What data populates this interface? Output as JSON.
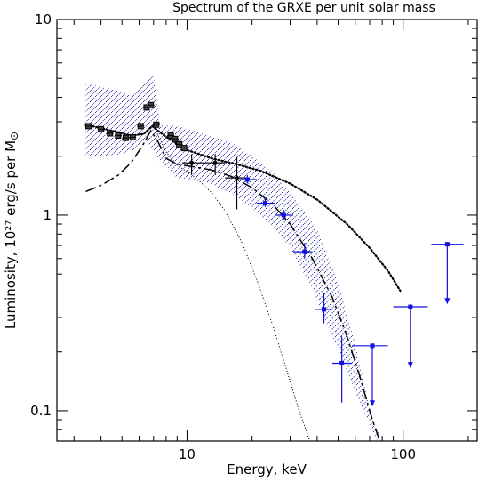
{
  "chart_data": {
    "type": "scatter",
    "title": "Spectrum of the GRXE per unit solar mass",
    "xlabel": "Energy, keV",
    "ylabel": "Luminosity, 10²⁷ erg/s per M",
    "ylabel_symbol": "⊙",
    "xscale": "log",
    "yscale": "log",
    "xlim": [
      2.5,
      220
    ],
    "ylim": [
      0.07,
      10
    ],
    "x_tick_labels": [
      "10",
      "100"
    ],
    "y_tick_labels": [
      "0.1",
      "1",
      "10"
    ],
    "colors": {
      "axes": "#000000",
      "blue": "#1010e0",
      "black": "#000000",
      "hatch": "#1a1aa0"
    },
    "series": [
      {
        "style": "black-data-points",
        "points": [
          {
            "x": 3.5,
            "y": 2.85
          },
          {
            "x": 4.0,
            "y": 2.75
          },
          {
            "x": 4.4,
            "y": 2.62
          },
          {
            "x": 4.8,
            "y": 2.55
          },
          {
            "x": 5.2,
            "y": 2.48
          },
          {
            "x": 5.6,
            "y": 2.5
          },
          {
            "x": 6.1,
            "y": 2.85
          },
          {
            "x": 6.5,
            "y": 3.55
          },
          {
            "x": 6.8,
            "y": 3.65
          },
          {
            "x": 7.2,
            "y": 2.9
          },
          {
            "x": 8.4,
            "y": 2.55
          },
          {
            "x": 8.8,
            "y": 2.45
          },
          {
            "x": 9.2,
            "y": 2.3
          },
          {
            "x": 9.7,
            "y": 2.2
          }
        ]
      },
      {
        "style": "black-error-bars",
        "points": [
          {
            "x": 10.5,
            "y": 1.85,
            "xlo": 9.5,
            "xhi": 12,
            "ylo": 1.62,
            "yhi": 2.05
          },
          {
            "x": 13.5,
            "y": 1.85,
            "xlo": 12,
            "xhi": 15,
            "ylo": 1.6,
            "yhi": 2.05
          },
          {
            "x": 17.0,
            "y": 1.55,
            "xlo": 15,
            "xhi": 19.5,
            "ylo": 1.07,
            "yhi": 1.98
          }
        ]
      },
      {
        "style": "blue-data-points",
        "points": [
          {
            "x": 19,
            "y": 1.52,
            "xlo": 17.5,
            "xhi": 21,
            "ylo": 1.45,
            "yhi": 1.6
          },
          {
            "x": 23,
            "y": 1.15,
            "xlo": 21,
            "xhi": 25.5,
            "ylo": 1.1,
            "yhi": 1.22
          },
          {
            "x": 28,
            "y": 1.0,
            "xlo": 25.5,
            "xhi": 31,
            "ylo": 0.95,
            "yhi": 1.06
          },
          {
            "x": 35,
            "y": 0.65,
            "xlo": 31,
            "xhi": 38,
            "ylo": 0.6,
            "yhi": 0.72
          },
          {
            "x": 43,
            "y": 0.33,
            "xlo": 39,
            "xhi": 47,
            "ylo": 0.28,
            "yhi": 0.4
          },
          {
            "x": 52,
            "y": 0.175,
            "xlo": 47,
            "xhi": 58,
            "ylo": 0.11,
            "yhi": 0.24
          }
        ]
      },
      {
        "style": "blue-upper-limits",
        "points": [
          {
            "x": 72,
            "y": 0.215,
            "xlo": 58,
            "xhi": 85,
            "yarrow": 0.105
          },
          {
            "x": 108,
            "y": 0.34,
            "xlo": 90,
            "xhi": 130,
            "yarrow": 0.165
          },
          {
            "x": 160,
            "y": 0.71,
            "xlo": 135,
            "xhi": 190,
            "yarrow": 0.35
          }
        ]
      },
      {
        "style": "hatched-band",
        "upper": [
          {
            "x": 3.4,
            "y": 4.7
          },
          {
            "x": 4.5,
            "y": 4.4
          },
          {
            "x": 5.5,
            "y": 4.1
          },
          {
            "x": 6.3,
            "y": 4.8
          },
          {
            "x": 7.0,
            "y": 5.2
          },
          {
            "x": 7.5,
            "y": 2.9
          },
          {
            "x": 9,
            "y": 2.85
          },
          {
            "x": 12,
            "y": 2.6
          },
          {
            "x": 16,
            "y": 2.35
          },
          {
            "x": 20,
            "y": 2.0
          },
          {
            "x": 25,
            "y": 1.65
          },
          {
            "x": 30,
            "y": 1.3
          },
          {
            "x": 40,
            "y": 0.85
          },
          {
            "x": 50,
            "y": 0.45
          },
          {
            "x": 60,
            "y": 0.22
          },
          {
            "x": 72,
            "y": 0.09
          },
          {
            "x": 80,
            "y": 0.07
          }
        ],
        "lower": [
          {
            "x": 76,
            "y": 0.07
          },
          {
            "x": 65,
            "y": 0.1
          },
          {
            "x": 55,
            "y": 0.16
          },
          {
            "x": 45,
            "y": 0.27
          },
          {
            "x": 38,
            "y": 0.42
          },
          {
            "x": 30,
            "y": 0.68
          },
          {
            "x": 25,
            "y": 0.88
          },
          {
            "x": 20,
            "y": 1.08
          },
          {
            "x": 16,
            "y": 1.3
          },
          {
            "x": 12,
            "y": 1.48
          },
          {
            "x": 9,
            "y": 1.55
          },
          {
            "x": 7.5,
            "y": 1.9
          },
          {
            "x": 6.5,
            "y": 2.4
          },
          {
            "x": 6,
            "y": 2.2
          },
          {
            "x": 5,
            "y": 2.05
          },
          {
            "x": 4,
            "y": 2.0
          },
          {
            "x": 3.4,
            "y": 2.0
          }
        ]
      },
      {
        "style": "dense-dotted-curve",
        "points": [
          {
            "x": 3.4,
            "y": 2.9
          },
          {
            "x": 4.5,
            "y": 2.7
          },
          {
            "x": 5.5,
            "y": 2.55
          },
          {
            "x": 6.3,
            "y": 2.6
          },
          {
            "x": 6.9,
            "y": 2.85
          },
          {
            "x": 7.5,
            "y": 2.65
          },
          {
            "x": 8.5,
            "y": 2.4
          },
          {
            "x": 10,
            "y": 2.15
          },
          {
            "x": 13,
            "y": 1.95
          },
          {
            "x": 17,
            "y": 1.82
          },
          {
            "x": 22,
            "y": 1.68
          },
          {
            "x": 30,
            "y": 1.45
          },
          {
            "x": 40,
            "y": 1.2
          },
          {
            "x": 55,
            "y": 0.9
          },
          {
            "x": 70,
            "y": 0.68
          },
          {
            "x": 85,
            "y": 0.52
          },
          {
            "x": 97,
            "y": 0.41
          }
        ]
      },
      {
        "style": "dashed-curve",
        "points": [
          {
            "x": 3.4,
            "y": 1.32
          },
          {
            "x": 4.0,
            "y": 1.42
          },
          {
            "x": 4.8,
            "y": 1.6
          },
          {
            "x": 5.5,
            "y": 1.85
          },
          {
            "x": 6.2,
            "y": 2.25
          },
          {
            "x": 6.8,
            "y": 2.7
          },
          {
            "x": 7.3,
            "y": 2.4
          },
          {
            "x": 8.0,
            "y": 1.95
          },
          {
            "x": 9.0,
            "y": 1.82
          },
          {
            "x": 11,
            "y": 1.76
          },
          {
            "x": 13,
            "y": 1.7
          },
          {
            "x": 16,
            "y": 1.58
          },
          {
            "x": 20,
            "y": 1.38
          },
          {
            "x": 25,
            "y": 1.13
          },
          {
            "x": 30,
            "y": 0.9
          },
          {
            "x": 38,
            "y": 0.6
          },
          {
            "x": 47,
            "y": 0.38
          },
          {
            "x": 55,
            "y": 0.24
          },
          {
            "x": 63,
            "y": 0.15
          },
          {
            "x": 72,
            "y": 0.09
          },
          {
            "x": 78,
            "y": 0.07
          }
        ]
      },
      {
        "style": "thin-dotted-curve",
        "points": [
          {
            "x": 7.0,
            "y": 2.85
          },
          {
            "x": 8.0,
            "y": 2.1
          },
          {
            "x": 9.0,
            "y": 1.8
          },
          {
            "x": 11,
            "y": 1.55
          },
          {
            "x": 13,
            "y": 1.3
          },
          {
            "x": 15,
            "y": 1.05
          },
          {
            "x": 18,
            "y": 0.72
          },
          {
            "x": 21,
            "y": 0.47
          },
          {
            "x": 25,
            "y": 0.27
          },
          {
            "x": 29,
            "y": 0.16
          },
          {
            "x": 33,
            "y": 0.1
          },
          {
            "x": 37,
            "y": 0.07
          }
        ]
      }
    ]
  }
}
